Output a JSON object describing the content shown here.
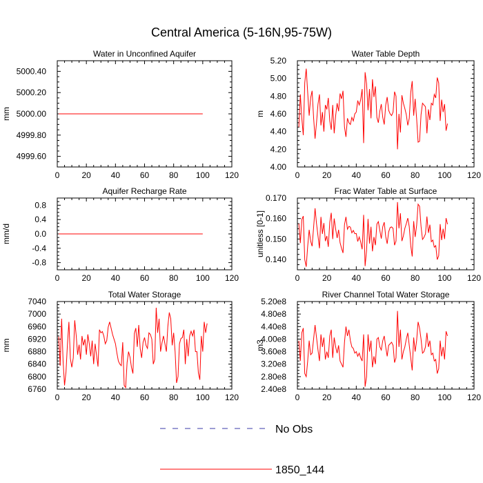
{
  "figure_title": "Central America (5-16N,95-75W)",
  "colors": {
    "model": "#ff0000",
    "obs": "#3a3aa8",
    "axis": "#000000"
  },
  "legend": {
    "position": "bottom-center",
    "entries": [
      {
        "label": "No Obs",
        "style": "dashed",
        "color": "#3a3aa8"
      },
      {
        "label": "1850_144",
        "style": "solid",
        "color": "#ff0000"
      }
    ]
  },
  "chart_data": [
    {
      "type": "line",
      "title": "Water in Unconfined Aquifer",
      "xlabel": "",
      "ylabel": "mm",
      "xlim": [
        0,
        120
      ],
      "ylim": [
        4999.5,
        5000.5
      ],
      "xticks": [
        "0",
        "20",
        "40",
        "60",
        "80",
        "100",
        "120"
      ],
      "yticks": [
        4999.6,
        4999.8,
        5000.0,
        5000.2,
        5000.4
      ],
      "ytick_labels": [
        "4999.60",
        "4999.80",
        "5000.00",
        "5000.20",
        "5000.40"
      ],
      "series": [
        {
          "name": "1850_144",
          "x_start": 1,
          "x_step": 1,
          "values": [
            5000,
            5000,
            5000,
            5000,
            5000,
            5000,
            5000,
            5000,
            5000,
            5000,
            5000,
            5000,
            5000,
            5000,
            5000,
            5000,
            5000,
            5000,
            5000,
            5000,
            5000,
            5000,
            5000,
            5000,
            5000,
            5000,
            5000,
            5000,
            5000,
            5000,
            5000,
            5000,
            5000,
            5000,
            5000,
            5000,
            5000,
            5000,
            5000,
            5000,
            5000,
            5000,
            5000,
            5000,
            5000,
            5000,
            5000,
            5000,
            5000,
            5000,
            5000,
            5000,
            5000,
            5000,
            5000,
            5000,
            5000,
            5000,
            5000,
            5000,
            5000,
            5000,
            5000,
            5000,
            5000,
            5000,
            5000,
            5000,
            5000,
            5000,
            5000,
            5000,
            5000,
            5000,
            5000,
            5000,
            5000,
            5000,
            5000,
            5000,
            5000,
            5000,
            5000,
            5000,
            5000,
            5000,
            5000,
            5000,
            5000,
            5000,
            5000,
            5000,
            5000,
            5000,
            5000,
            5000,
            5000,
            5000,
            5000,
            5000
          ]
        }
      ]
    },
    {
      "type": "line",
      "title": "Water Table Depth",
      "xlabel": "",
      "ylabel": "m",
      "xlim": [
        0,
        120
      ],
      "ylim": [
        4.0,
        5.2
      ],
      "xticks": [
        "0",
        "20",
        "40",
        "60",
        "80",
        "100",
        "120"
      ],
      "yticks": [
        4.0,
        4.2,
        4.4,
        4.6,
        4.8,
        5.0,
        5.2
      ],
      "ytick_labels": [
        "4.00",
        "4.20",
        "4.40",
        "4.60",
        "4.80",
        "5.00",
        "5.20"
      ],
      "series": [
        {
          "name": "1850_144",
          "x_start": 1,
          "x_step": 1,
          "values": [
            4.45,
            4.82,
            4.55,
            4.36,
            4.95,
            5.11,
            4.84,
            4.58,
            4.78,
            4.86,
            4.56,
            4.32,
            4.5,
            4.71,
            4.82,
            4.47,
            4.62,
            4.4,
            4.7,
            4.65,
            4.78,
            4.52,
            4.42,
            4.7,
            4.38,
            4.58,
            4.72,
            4.63,
            4.83,
            4.77,
            4.86,
            4.45,
            4.34,
            4.55,
            4.5,
            4.48,
            4.56,
            4.52,
            4.6,
            4.62,
            4.75,
            4.7,
            4.76,
            4.88,
            4.27,
            5.07,
            4.94,
            4.64,
            4.88,
            4.55,
            4.99,
            4.79,
            4.91,
            4.56,
            4.5,
            4.63,
            4.71,
            4.56,
            4.48,
            4.7,
            4.79,
            4.64,
            4.6,
            4.58,
            4.62,
            4.85,
            4.8,
            4.2,
            4.6,
            4.39,
            4.81,
            4.72,
            4.66,
            4.59,
            4.47,
            4.55,
            4.84,
            4.97,
            4.58,
            4.77,
            4.55,
            4.28,
            4.29,
            4.59,
            4.72,
            4.7,
            4.68,
            4.38,
            4.65,
            4.53,
            4.72,
            4.7,
            4.82,
            4.78,
            5.01,
            4.95,
            4.52,
            4.76,
            4.62,
            4.71,
            4.41,
            4.49
          ]
        }
      ]
    },
    {
      "type": "line",
      "title": "Aquifer Recharge Rate",
      "xlabel": "",
      "ylabel": "mm/d",
      "xlim": [
        0,
        120
      ],
      "ylim": [
        -1.0,
        1.0
      ],
      "xticks": [
        "0",
        "20",
        "40",
        "60",
        "80",
        "100",
        "120"
      ],
      "yticks": [
        -0.8,
        -0.4,
        0.0,
        0.4,
        0.8
      ],
      "ytick_labels": [
        "-0.8",
        "-0.4",
        "0.0",
        "0.4",
        "0.8"
      ],
      "series": [
        {
          "name": "1850_144",
          "x_start": 1,
          "x_step": 1,
          "values": [
            0,
            0,
            0,
            0,
            0,
            0,
            0,
            0,
            0,
            0,
            0,
            0,
            0,
            0,
            0,
            0,
            0,
            0,
            0,
            0,
            0,
            0,
            0,
            0,
            0,
            0,
            0,
            0,
            0,
            0,
            0,
            0,
            0,
            0,
            0,
            0,
            0,
            0,
            0,
            0,
            0,
            0,
            0,
            0,
            0,
            0,
            0,
            0,
            0,
            0,
            0,
            0,
            0,
            0,
            0,
            0,
            0,
            0,
            0,
            0,
            0,
            0,
            0,
            0,
            0,
            0,
            0,
            0,
            0,
            0,
            0,
            0,
            0,
            0,
            0,
            0,
            0,
            0,
            0,
            0,
            0,
            0,
            0,
            0,
            0,
            0,
            0,
            0,
            0,
            0,
            0,
            0,
            0,
            0,
            0,
            0,
            0,
            0,
            0,
            0
          ]
        }
      ]
    },
    {
      "type": "line",
      "title": "Frac Water Table at Surface",
      "xlabel": "",
      "ylabel": "unitless [0-1]",
      "xlim": [
        0,
        120
      ],
      "ylim": [
        0.135,
        0.17
      ],
      "xticks": [
        "0",
        "20",
        "40",
        "60",
        "80",
        "100",
        "120"
      ],
      "yticks": [
        0.14,
        0.15,
        0.16,
        0.17
      ],
      "ytick_labels": [
        "0.140",
        "0.150",
        "0.160",
        "0.170"
      ],
      "series": [
        {
          "name": "1850_144",
          "x_start": 1,
          "x_step": 1,
          "values": [
            0.1575,
            0.148,
            0.1595,
            0.1612,
            0.14,
            0.1365,
            0.1465,
            0.1545,
            0.149,
            0.1465,
            0.1555,
            0.165,
            0.1575,
            0.1515,
            0.1455,
            0.1608,
            0.1525,
            0.1578,
            0.149,
            0.1515,
            0.1462,
            0.1582,
            0.1628,
            0.15,
            0.16,
            0.1548,
            0.1505,
            0.1545,
            0.1482,
            0.1455,
            0.1432,
            0.157,
            0.1608,
            0.1548,
            0.1562,
            0.1558,
            0.153,
            0.1542,
            0.1526,
            0.1527,
            0.1488,
            0.151,
            0.1486,
            0.145,
            0.1618,
            0.1368,
            0.1445,
            0.1598,
            0.1478,
            0.156,
            0.144,
            0.151,
            0.147,
            0.1573,
            0.1585,
            0.1542,
            0.1502,
            0.156,
            0.1582,
            0.1512,
            0.1477,
            0.1535,
            0.1556,
            0.1559,
            0.1552,
            0.147,
            0.149,
            0.168,
            0.1552,
            0.1626,
            0.149,
            0.1515,
            0.1552,
            0.1575,
            0.1602,
            0.156,
            0.1468,
            0.1415,
            0.1587,
            0.151,
            0.1565,
            0.167,
            0.166,
            0.1562,
            0.1498,
            0.1508,
            0.1525,
            0.161,
            0.153,
            0.157,
            0.1487,
            0.1495,
            0.146,
            0.1468,
            0.14,
            0.1418,
            0.1573,
            0.1495,
            0.155,
            0.15,
            0.1602,
            0.1572
          ]
        }
      ]
    },
    {
      "type": "line",
      "title": "Total Water Storage",
      "xlabel": "",
      "ylabel": "mm",
      "xlim": [
        0,
        120
      ],
      "ylim": [
        6760,
        7040
      ],
      "xticks": [
        "0",
        "20",
        "40",
        "60",
        "80",
        "100",
        "120"
      ],
      "yticks": [
        6760,
        6800,
        6840,
        6880,
        6920,
        6960,
        7000,
        7040
      ],
      "ytick_labels": [
        "6760",
        "6800",
        "6840",
        "6880",
        "6920",
        "6960",
        "7000",
        "7040"
      ],
      "series": [
        {
          "name": "1850_144",
          "x_start": 1,
          "x_step": 1,
          "values": [
            6928,
            6835,
            6985,
            6850,
            6772,
            6815,
            6905,
            6975,
            6858,
            6830,
            6860,
            6980,
            6932,
            6870,
            6902,
            6855,
            6930,
            6900,
            6920,
            6870,
            6935,
            6905,
            6865,
            6915,
            6840,
            6905,
            6868,
            6832,
            6950,
            6940,
            6944,
            6930,
            6905,
            6915,
            6958,
            6975,
            6955,
            6935,
            6920,
            6905,
            6875,
            6850,
            6840,
            6835,
            6910,
            6772,
            6765,
            6845,
            6880,
            6862,
            6830,
            6810,
            6938,
            6955,
            6895,
            6965,
            6890,
            6860,
            6910,
            6925,
            6900,
            6890,
            6940,
            6935,
            6920,
            6840,
            6855,
            7020,
            6940,
            6985,
            6880,
            6908,
            6930,
            6905,
            6880,
            6960,
            7005,
            6985,
            6900,
            6940,
            6880,
            6780,
            6800,
            6905,
            6922,
            6925,
            6950,
            6840,
            6920,
            6865,
            6930,
            6945,
            6930,
            6950,
            6880,
            6880,
            6812,
            6790,
            6930,
            6880,
            6975,
            6940,
            6970
          ]
        }
      ]
    },
    {
      "type": "line",
      "title": "River Channel Total Water Storage",
      "xlabel": "",
      "ylabel": "m3",
      "xlim": [
        0,
        120
      ],
      "ylim": [
        240000000,
        520000000
      ],
      "xticks": [
        "0",
        "20",
        "40",
        "60",
        "80",
        "100",
        "120"
      ],
      "yticks": [
        240000000,
        280000000,
        320000000,
        360000000,
        400000000,
        440000000,
        480000000,
        520000000
      ],
      "ytick_labels": [
        "2.40e8",
        "2.80e8",
        "3.20e8",
        "3.60e8",
        "4.00e8",
        "4.40e8",
        "4.80e8",
        "5.20e8"
      ],
      "series": [
        {
          "name": "1850_144",
          "x_start": 1,
          "x_step": 1,
          "values": [
            395000000,
            330000000,
            420000000,
            435000000,
            290000000,
            280000000,
            330000000,
            395000000,
            350000000,
            355000000,
            400000000,
            445000000,
            405000000,
            365000000,
            330000000,
            415000000,
            375000000,
            405000000,
            335000000,
            360000000,
            340000000,
            410000000,
            430000000,
            340000000,
            405000000,
            375000000,
            355000000,
            380000000,
            330000000,
            320000000,
            310000000,
            390000000,
            440000000,
            410000000,
            430000000,
            395000000,
            375000000,
            370000000,
            355000000,
            360000000,
            345000000,
            355000000,
            340000000,
            330000000,
            415000000,
            248000000,
            280000000,
            415000000,
            360000000,
            395000000,
            310000000,
            345000000,
            320000000,
            400000000,
            405000000,
            375000000,
            365000000,
            395000000,
            410000000,
            375000000,
            345000000,
            380000000,
            385000000,
            390000000,
            380000000,
            325000000,
            340000000,
            490000000,
            375000000,
            430000000,
            335000000,
            360000000,
            375000000,
            400000000,
            420000000,
            380000000,
            340000000,
            300000000,
            405000000,
            360000000,
            395000000,
            455000000,
            435000000,
            400000000,
            355000000,
            360000000,
            375000000,
            420000000,
            375000000,
            395000000,
            350000000,
            355000000,
            330000000,
            335000000,
            290000000,
            305000000,
            395000000,
            345000000,
            375000000,
            335000000,
            425000000,
            410000000
          ]
        }
      ]
    }
  ]
}
